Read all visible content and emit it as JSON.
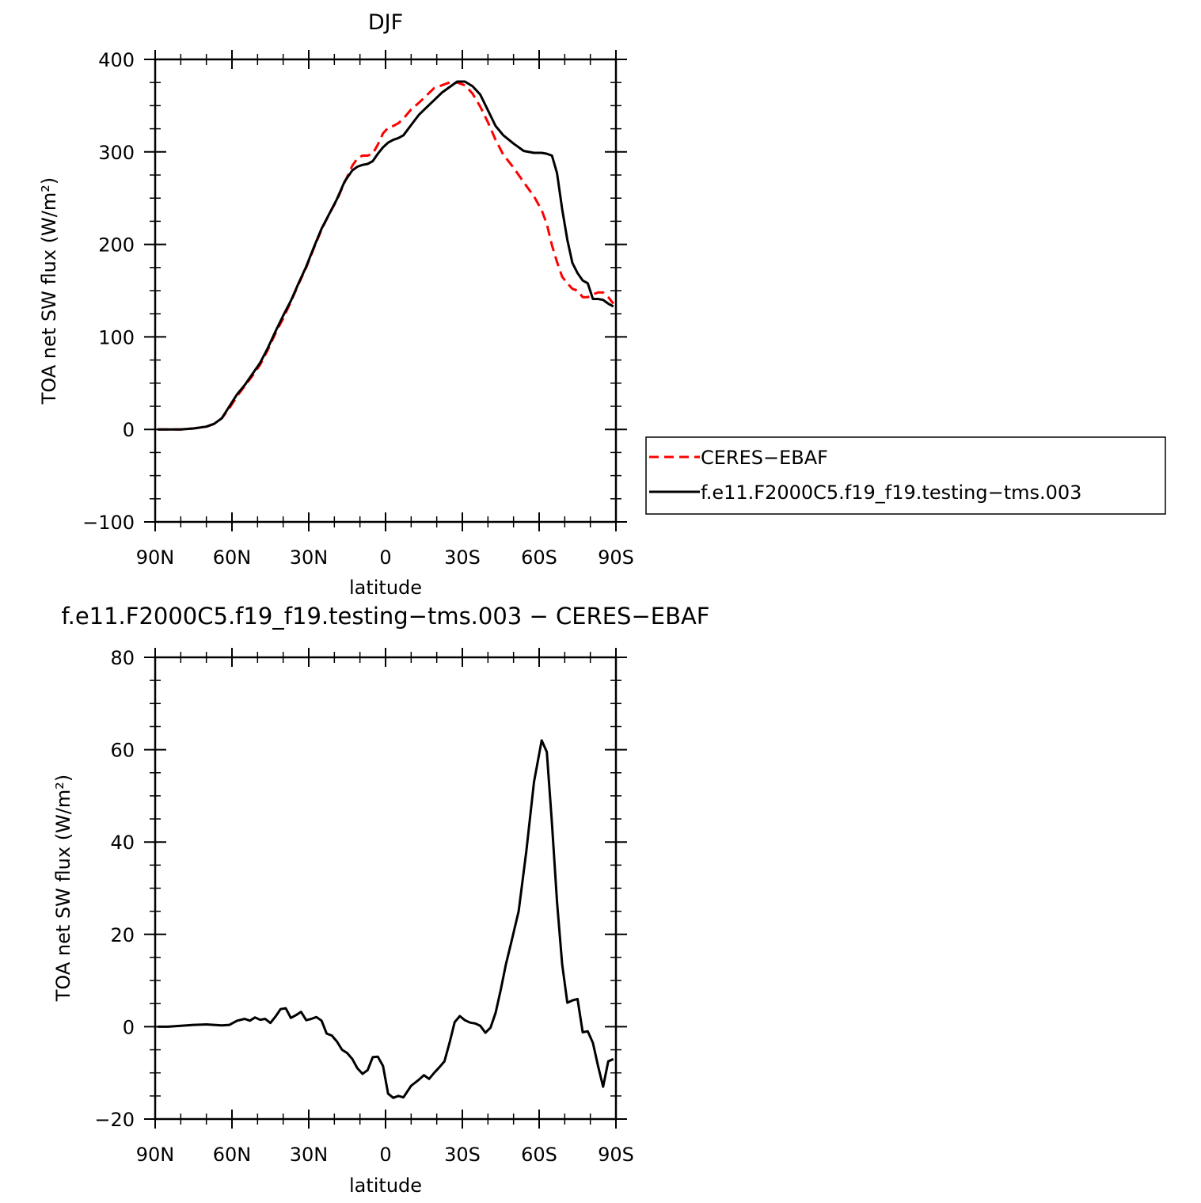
{
  "chart_data": [
    {
      "type": "line",
      "title": "DJF",
      "xlabel": "latitude",
      "ylabel": "TOA net SW flux (W/m²)",
      "xlim": [
        -90,
        90
      ],
      "ylim": [
        -100,
        400
      ],
      "x_ticks": [
        -90,
        -60,
        -30,
        0,
        30,
        60,
        90
      ],
      "x_tick_labels": [
        "90N",
        "60N",
        "30N",
        "0",
        "30S",
        "60S",
        "90S"
      ],
      "y_ticks": [
        -100,
        0,
        100,
        200,
        300,
        400
      ],
      "y_tick_labels": [
        "−100",
        "0",
        "100",
        "200",
        "300",
        "400"
      ],
      "legend_position": "right",
      "series": [
        {
          "name": "CERES−EBAF",
          "color": "#ff0000",
          "dash": "dashed",
          "x": [
            -89,
            -85,
            -80,
            -75,
            -70,
            -67,
            -64,
            -61,
            -58,
            -55,
            -52,
            -49,
            -46,
            -43,
            -40,
            -37,
            -34,
            -31,
            -28,
            -25,
            -22,
            -19,
            -16,
            -13,
            -11,
            -9,
            -7,
            -5,
            -3,
            -1,
            1,
            3,
            5,
            7,
            10,
            13,
            16,
            19,
            22,
            25,
            28,
            31,
            34,
            37,
            40,
            43,
            46,
            50,
            54,
            58,
            61,
            63,
            65,
            67,
            69,
            71,
            73,
            75,
            77,
            79,
            81,
            83,
            85,
            87,
            89
          ],
          "y": [
            0,
            0,
            0,
            1,
            3,
            6,
            12,
            23,
            36,
            47,
            58,
            70,
            86,
            104,
            120,
            138,
            157,
            175,
            196,
            216,
            233,
            248,
            267,
            285,
            293,
            296,
            296,
            298,
            308,
            320,
            326,
            328,
            331,
            336,
            346,
            353,
            361,
            369,
            372,
            375,
            375,
            372,
            363,
            349,
            332,
            313,
            297,
            283,
            267,
            252,
            237,
            222,
            199,
            181,
            165,
            158,
            152,
            150,
            143,
            143,
            146,
            148,
            148,
            143,
            136
          ]
        },
        {
          "name": "f.e11.F2000C5.f19_f19.testing−tms.003",
          "color": "#000000",
          "dash": "solid",
          "x": [
            -89,
            -85,
            -80,
            -75,
            -70,
            -67,
            -64,
            -61,
            -58,
            -55,
            -52,
            -49,
            -46,
            -43,
            -40,
            -37,
            -34,
            -31,
            -28,
            -25,
            -22,
            -19,
            -16,
            -13,
            -11,
            -9,
            -7,
            -5,
            -3,
            -1,
            1,
            3,
            5,
            7,
            10,
            13,
            16,
            19,
            22,
            25,
            28,
            31,
            34,
            37,
            40,
            43,
            46,
            50,
            54,
            58,
            61,
            63,
            65,
            67,
            69,
            71,
            73,
            75,
            77,
            79,
            81,
            83,
            85,
            87,
            89
          ],
          "y": [
            0,
            0,
            0,
            1,
            3,
            6,
            12,
            25,
            38,
            48,
            60,
            72,
            88,
            106,
            123,
            139,
            158,
            176,
            197,
            217,
            233,
            249,
            268,
            280,
            284,
            286,
            287,
            290,
            298,
            305,
            310,
            313,
            315,
            318,
            329,
            340,
            348,
            356,
            364,
            370,
            376,
            376,
            371,
            362,
            345,
            328,
            318,
            309,
            301,
            299,
            299,
            298,
            296,
            277,
            238,
            205,
            180,
            169,
            161,
            158,
            141,
            141,
            140,
            136,
            133
          ]
        }
      ]
    },
    {
      "type": "line",
      "title": "f.e11.F2000C5.f19_f19.testing−tms.003 − CERES−EBAF",
      "xlabel": "latitude",
      "ylabel": "TOA net SW flux (W/m²)",
      "xlim": [
        -90,
        90
      ],
      "ylim": [
        -20,
        80
      ],
      "x_ticks": [
        -90,
        -60,
        -30,
        0,
        30,
        60,
        90
      ],
      "x_tick_labels": [
        "90N",
        "60N",
        "30N",
        "0",
        "30S",
        "60S",
        "90S"
      ],
      "y_ticks": [
        -20,
        0,
        20,
        40,
        60,
        80
      ],
      "y_tick_labels": [
        "−20",
        "0",
        "20",
        "40",
        "60",
        "80"
      ],
      "series": [
        {
          "color": "#000000",
          "dash": "solid",
          "x": [
            -89,
            -85,
            -80,
            -75,
            -70,
            -67,
            -64,
            -61,
            -58,
            -55,
            -53,
            -51,
            -49,
            -47,
            -45,
            -43,
            -41,
            -39,
            -37,
            -35,
            -33,
            -31,
            -29,
            -27,
            -25,
            -23,
            -21,
            -19,
            -17,
            -15,
            -13,
            -11,
            -9,
            -7,
            -5,
            -3,
            -1,
            1,
            3,
            5,
            7,
            10,
            13,
            15,
            17,
            19,
            21,
            23,
            25,
            27,
            29,
            31,
            33,
            35,
            37,
            39,
            41,
            43,
            45,
            47,
            49,
            52,
            55,
            58,
            61,
            63,
            65,
            67,
            69,
            71,
            73,
            75,
            77,
            79,
            81,
            83,
            85,
            87,
            89
          ],
          "y": [
            0,
            0,
            0.2,
            0.4,
            0.5,
            0.4,
            0.3,
            0.4,
            1.3,
            1.7,
            1.3,
            2.0,
            1.5,
            1.7,
            0.8,
            2.2,
            3.8,
            4.0,
            1.9,
            2.5,
            3.2,
            1.4,
            1.7,
            2.1,
            1.3,
            -1.5,
            -1.9,
            -3.2,
            -5.0,
            -5.7,
            -7.0,
            -9.0,
            -10.2,
            -9.4,
            -6.6,
            -6.5,
            -8.5,
            -14.5,
            -15.4,
            -15.0,
            -15.3,
            -12.8,
            -11.5,
            -10.5,
            -11.3,
            -10.0,
            -8.8,
            -7.5,
            -3.5,
            1.0,
            2.3,
            1.4,
            0.9,
            0.7,
            0.2,
            -1.3,
            -0.2,
            3.0,
            8.0,
            13.5,
            18.0,
            25.0,
            38.0,
            53.0,
            62.0,
            59.5,
            44.0,
            27.0,
            13.5,
            5.2,
            5.7,
            6.0,
            -1.2,
            -1.0,
            -3.5,
            -8.5,
            -13.0,
            -7.5,
            -7.0
          ]
        }
      ]
    }
  ]
}
